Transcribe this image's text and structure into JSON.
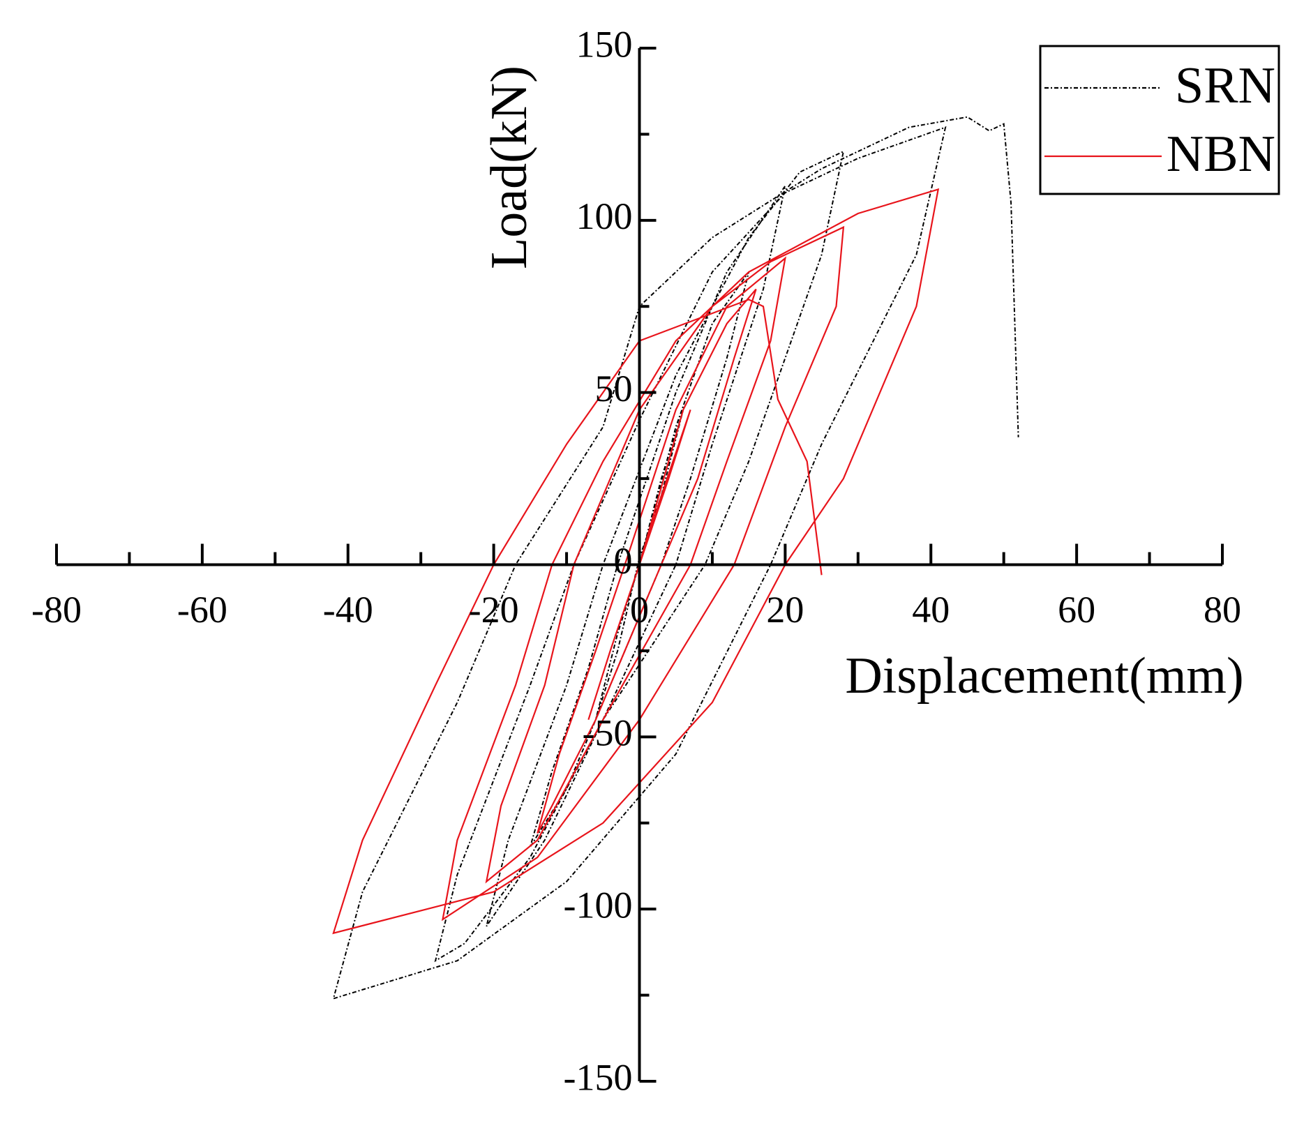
{
  "chart_data": {
    "type": "line",
    "x_label": "Displacement(mm)",
    "y_label": "Load(kN)",
    "xlim": [
      -80,
      80
    ],
    "xticks": [
      -80,
      -60,
      -40,
      -20,
      0,
      20,
      40,
      60,
      80
    ],
    "ylim": [
      -150,
      150
    ],
    "yticks": [
      -150,
      -100,
      -50,
      0,
      50,
      100,
      150
    ],
    "legend": "top-right",
    "series": [
      {
        "name": "SRN",
        "color": "#000000",
        "style": "dashdot",
        "x": [
          0,
          3,
          6,
          3,
          0,
          -3,
          -6,
          -3,
          0,
          5,
          10,
          15,
          12,
          7,
          3,
          -5,
          -10,
          -15,
          -12,
          -7,
          -3,
          5,
          12,
          20,
          17,
          10,
          5,
          -5,
          -13,
          -21,
          -18,
          -10,
          -5,
          5,
          15,
          22,
          28,
          25,
          15,
          9,
          -5,
          -15,
          -24,
          -28,
          -25,
          -15,
          -9,
          0,
          10,
          20,
          30,
          42,
          38,
          25,
          18,
          5,
          -10,
          -25,
          -42,
          -38,
          -25,
          -17,
          -5,
          0,
          10,
          25,
          37,
          45,
          48,
          50,
          51,
          52
        ],
        "values": [
          0,
          25,
          45,
          20,
          2,
          -25,
          -45,
          -20,
          0,
          40,
          70,
          85,
          60,
          25,
          0,
          -40,
          -65,
          -82,
          -60,
          -30,
          0,
          50,
          85,
          110,
          80,
          35,
          0,
          -45,
          -80,
          -105,
          -80,
          -35,
          0,
          55,
          95,
          114,
          120,
          90,
          30,
          0,
          -45,
          -85,
          -110,
          -115,
          -90,
          -35,
          0,
          42,
          85,
          108,
          118,
          127,
          90,
          35,
          0,
          -55,
          -92,
          -115,
          -126,
          -95,
          -40,
          0,
          40,
          75,
          95,
          115,
          127,
          130,
          126,
          128,
          105,
          37
        ]
      },
      {
        "name": "NBN",
        "color": "#e8141b",
        "style": "solid",
        "x": [
          0,
          3,
          7,
          4,
          0,
          -4,
          -7,
          -4,
          0,
          6,
          12,
          16,
          13,
          8,
          3,
          -6,
          -12,
          -14,
          -11,
          -6,
          -2,
          5,
          12,
          20,
          18,
          12,
          7,
          -5,
          -14,
          -21,
          -19,
          -13,
          -9,
          0,
          10,
          18,
          28,
          27,
          20,
          13,
          0,
          -14,
          -27,
          -25,
          -17,
          -12,
          -5,
          5,
          15,
          30,
          41,
          38,
          28,
          20,
          10,
          -5,
          -20,
          -42,
          -38,
          -28,
          -20,
          -10,
          0,
          15,
          17,
          19,
          23,
          25
        ],
        "values": [
          0,
          20,
          45,
          25,
          0,
          -25,
          -45,
          -25,
          0,
          45,
          70,
          80,
          60,
          25,
          0,
          -45,
          -70,
          -78,
          -55,
          -25,
          0,
          45,
          75,
          89,
          65,
          30,
          0,
          -45,
          -80,
          -92,
          -70,
          -35,
          0,
          45,
          75,
          88,
          98,
          75,
          40,
          0,
          -45,
          -85,
          -103,
          -80,
          -35,
          0,
          30,
          65,
          85,
          102,
          109,
          75,
          25,
          0,
          -40,
          -75,
          -95,
          -107,
          -80,
          -35,
          0,
          35,
          65,
          77,
          75,
          48,
          30,
          -3
        ]
      }
    ]
  }
}
